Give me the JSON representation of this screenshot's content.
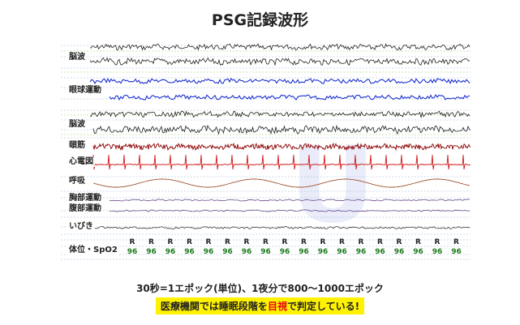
{
  "title": "PSG記録波形",
  "channels": [
    {
      "label": "脳波",
      "color": "#222222"
    },
    {
      "label": "眼球運動",
      "color": "#1a2fd0"
    },
    {
      "label": "脳波",
      "color": "#222222"
    },
    {
      "label": "頤筋",
      "color": "#8b0000"
    },
    {
      "label": "心電図",
      "color": "#d01818"
    },
    {
      "label": "呼吸",
      "color": "#a0522d"
    },
    {
      "label": "胸部運動",
      "color": "#6a4a8a"
    },
    {
      "label": "腹部運動",
      "color": "#6a4a8a"
    },
    {
      "label": "いびき",
      "color": "#222222"
    },
    {
      "label": "体位・SpO2",
      "color": "#1a7a1a"
    }
  ],
  "position_marker": "R",
  "spo2_value": "96",
  "watermark_letter": "U",
  "caption": "30秒=1エポック(単位)、1夜分で800〜1000エポック",
  "note": {
    "before": "医療機関では睡眠段階を",
    "highlight": "目視",
    "after": "で判定している!"
  }
}
